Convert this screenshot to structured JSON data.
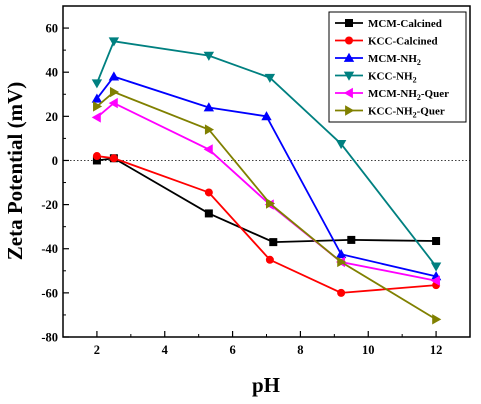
{
  "chart_data": {
    "type": "line",
    "xlabel": "pH",
    "ylabel": "Zeta Potential (mV)",
    "xlim": [
      1,
      13
    ],
    "ylim": [
      -80,
      70
    ],
    "xticks": [
      2,
      4,
      6,
      8,
      10,
      12
    ],
    "yticks": [
      -80,
      -60,
      -40,
      -20,
      0,
      20,
      40,
      60
    ],
    "reference_line_y": 0,
    "legend_position": "top-right",
    "series": [
      {
        "name": "MCM-Calcined",
        "name_main": "MCM-Calcined",
        "name_sub": "",
        "name_tail": "",
        "color": "#000000",
        "marker": "square",
        "x": [
          2,
          2.5,
          5.3,
          7.2,
          9.5,
          12
        ],
        "y": [
          0,
          1,
          -24,
          -37,
          -36,
          -36.5
        ]
      },
      {
        "name": "KCC-Calcined",
        "name_main": "KCC-Calcined",
        "name_sub": "",
        "name_tail": "",
        "color": "#ff0000",
        "marker": "circle",
        "x": [
          2,
          2.5,
          5.3,
          7.1,
          9.2,
          12
        ],
        "y": [
          2,
          1,
          -14.5,
          -45,
          -60,
          -56.5
        ]
      },
      {
        "name": "MCM-NH2",
        "name_main": "MCM-NH",
        "name_sub": "2",
        "name_tail": "",
        "color": "#0000ff",
        "marker": "triangle-up",
        "x": [
          2,
          2.5,
          5.3,
          7,
          9.2,
          12
        ],
        "y": [
          28,
          38,
          24,
          20,
          -42.5,
          -52.5
        ]
      },
      {
        "name": "KCC-NH2",
        "name_main": "KCC-NH",
        "name_sub": "2",
        "name_tail": "",
        "color": "#008080",
        "marker": "triangle-down",
        "x": [
          2,
          2.5,
          5.3,
          7.1,
          9.2,
          12
        ],
        "y": [
          35,
          54,
          47.5,
          37.5,
          7.5,
          -48
        ]
      },
      {
        "name": "MCM-NH2-Quer",
        "name_main": "MCM-NH",
        "name_sub": "2",
        "name_tail": "-Quer",
        "color": "#ff00ff",
        "marker": "triangle-left",
        "x": [
          2,
          2.5,
          5.3,
          7.1,
          9.2,
          12
        ],
        "y": [
          19.5,
          26,
          5,
          -20,
          -46,
          -54.5
        ]
      },
      {
        "name": "KCC-NH2-Quer",
        "name_main": "KCC-NH",
        "name_sub": "2",
        "name_tail": "-Quer",
        "color": "#808000",
        "marker": "triangle-right",
        "x": [
          2,
          2.5,
          5.3,
          7.1,
          9.2,
          12
        ],
        "y": [
          24.5,
          31,
          14,
          -19.5,
          -46,
          -72
        ]
      }
    ]
  }
}
